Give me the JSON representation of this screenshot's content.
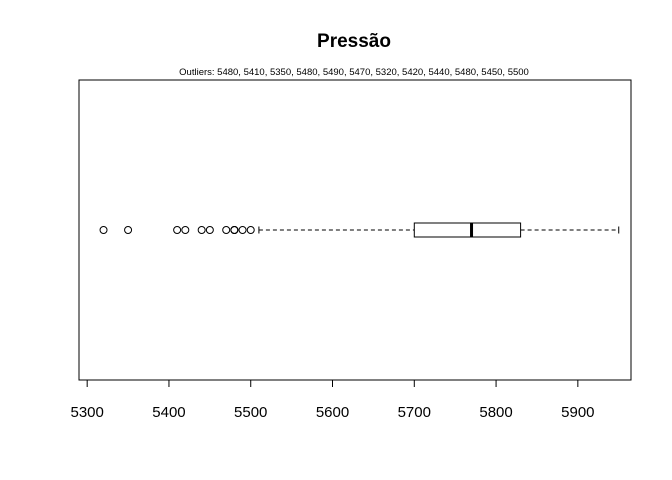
{
  "chart_data": {
    "type": "boxplot",
    "orientation": "horizontal",
    "title": "Pressão",
    "subtitle": "Outliers:  5480, 5410, 5350, 5480, 5490, 5470, 5320, 5420, 5440, 5480, 5450, 5500",
    "xlim": [
      5290,
      5965
    ],
    "x_ticks": [
      5300,
      5400,
      5500,
      5600,
      5700,
      5800,
      5900
    ],
    "x_tick_labels": [
      "5300",
      "5400",
      "5500",
      "5600",
      "5700",
      "5800",
      "5900"
    ],
    "box": {
      "whisker_low": 5510,
      "q1": 5700,
      "median": 5770,
      "q3": 5830,
      "whisker_high": 5950
    },
    "outliers": [
      5480,
      5410,
      5350,
      5480,
      5490,
      5470,
      5320,
      5420,
      5440,
      5480,
      5450,
      5500
    ],
    "colors": {
      "box_fill": "#ffffff",
      "stroke": "#000000"
    }
  }
}
